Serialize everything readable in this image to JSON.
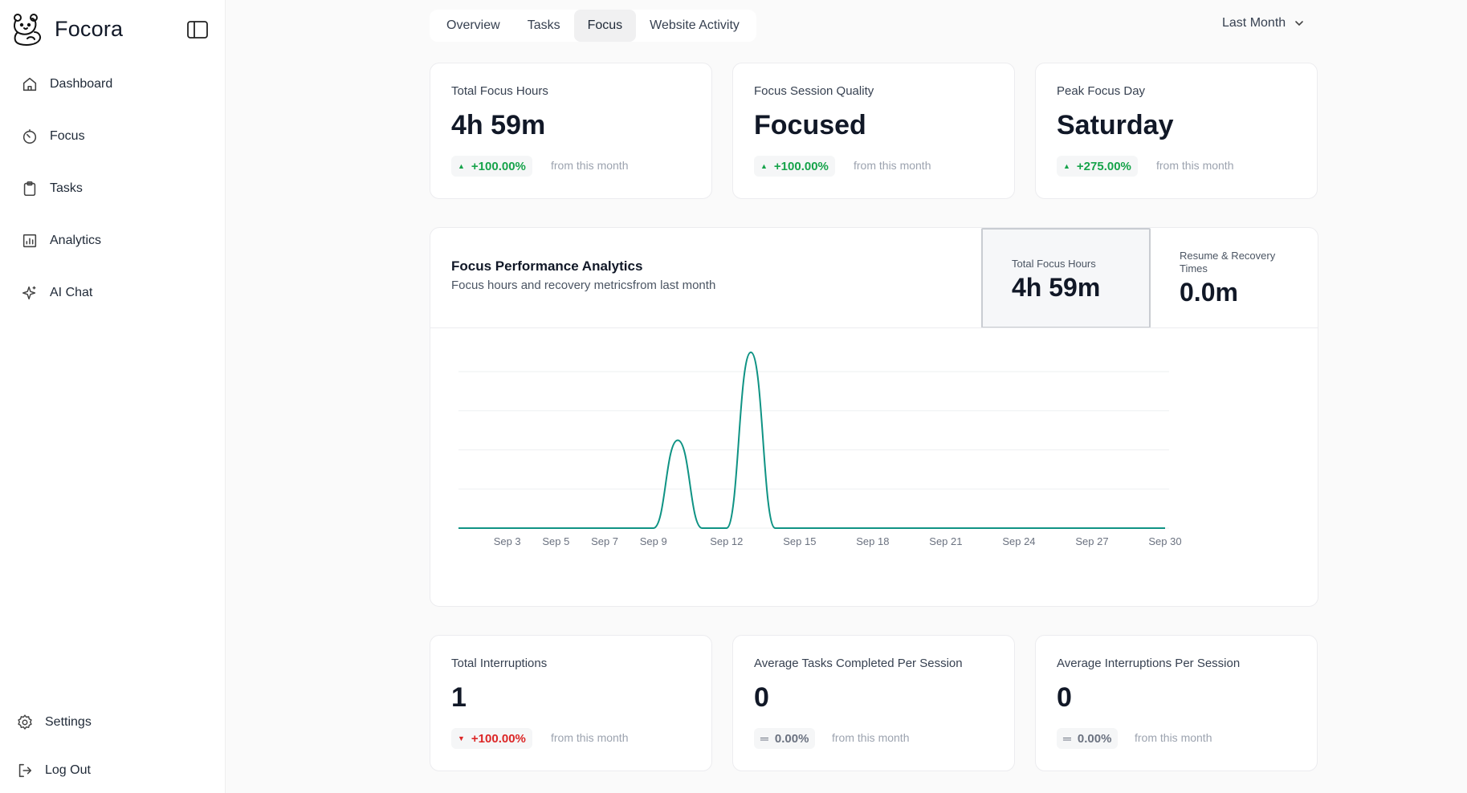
{
  "app": {
    "name": "Focora"
  },
  "sidebar": {
    "items": [
      {
        "label": "Dashboard",
        "icon": "home-icon"
      },
      {
        "label": "Focus",
        "icon": "timer-icon"
      },
      {
        "label": "Tasks",
        "icon": "clipboard-icon"
      },
      {
        "label": "Analytics",
        "icon": "bar-chart-icon"
      },
      {
        "label": "AI Chat",
        "icon": "sparkles-icon"
      }
    ],
    "bottom": [
      {
        "label": "Settings",
        "icon": "gear-icon"
      },
      {
        "label": "Log Out",
        "icon": "logout-icon"
      }
    ]
  },
  "tabs": [
    {
      "label": "Overview",
      "active": false
    },
    {
      "label": "Tasks",
      "active": false
    },
    {
      "label": "Focus",
      "active": true
    },
    {
      "label": "Website Activity",
      "active": false
    }
  ],
  "range": {
    "label": "Last Month"
  },
  "stats_top": [
    {
      "label": "Total Focus Hours",
      "value": "4h 59m",
      "delta": "+100.00%",
      "trend": "up",
      "note": "from this month"
    },
    {
      "label": "Focus Session Quality",
      "value": "Focused",
      "delta": "+100.00%",
      "trend": "up",
      "note": "from this month"
    },
    {
      "label": "Peak Focus Day",
      "value": "Saturday",
      "delta": "+275.00%",
      "trend": "up",
      "note": "from this month"
    }
  ],
  "panel": {
    "title": "Focus Performance Analytics",
    "subtitle": "Focus hours and recovery metricsfrom last month",
    "metric_a": {
      "label": "Total Focus Hours",
      "value": "4h 59m"
    },
    "metric_b": {
      "label": "Resume & Recovery Times",
      "value": "0.0m"
    }
  },
  "chart_data": {
    "type": "line",
    "x_ticks": [
      "Sep 3",
      "Sep 5",
      "Sep 7",
      "Sep 9",
      "Sep 12",
      "Sep 15",
      "Sep 18",
      "Sep 21",
      "Sep 24",
      "Sep 27",
      "Sep 30"
    ],
    "x": [
      "Sep 1",
      "Sep 2",
      "Sep 3",
      "Sep 4",
      "Sep 5",
      "Sep 6",
      "Sep 7",
      "Sep 8",
      "Sep 9",
      "Sep 10",
      "Sep 11",
      "Sep 12",
      "Sep 13",
      "Sep 14",
      "Sep 15",
      "Sep 16",
      "Sep 17",
      "Sep 18",
      "Sep 19",
      "Sep 20",
      "Sep 21",
      "Sep 22",
      "Sep 23",
      "Sep 24",
      "Sep 25",
      "Sep 26",
      "Sep 27",
      "Sep 28",
      "Sep 29",
      "Sep 30"
    ],
    "series": [
      {
        "values": [
          0,
          0,
          0,
          0,
          0,
          0,
          0,
          0,
          0,
          2,
          0,
          0,
          4,
          0,
          0,
          0,
          0,
          0,
          0,
          0,
          0,
          0,
          0,
          0,
          0,
          0,
          0,
          0,
          0,
          0
        ],
        "color": "#0f9384"
      }
    ],
    "ylim": [
      0,
      4
    ],
    "grid": true,
    "title": "",
    "xlabel": "",
    "ylabel": ""
  },
  "stats_bottom": [
    {
      "label": "Total Interruptions",
      "value": "1",
      "delta": "+100.00%",
      "trend": "down",
      "note": "from this month"
    },
    {
      "label": "Average Tasks Completed Per Session",
      "value": "0",
      "delta": "0.00%",
      "trend": "flat",
      "note": "from this month"
    },
    {
      "label": "Average Interruptions Per Session",
      "value": "0",
      "delta": "0.00%",
      "trend": "flat",
      "note": "from this month"
    }
  ],
  "colors": {
    "up": "#16a34a",
    "down": "#dc2626",
    "flat": "#6b7280",
    "line": "#0f9384"
  }
}
